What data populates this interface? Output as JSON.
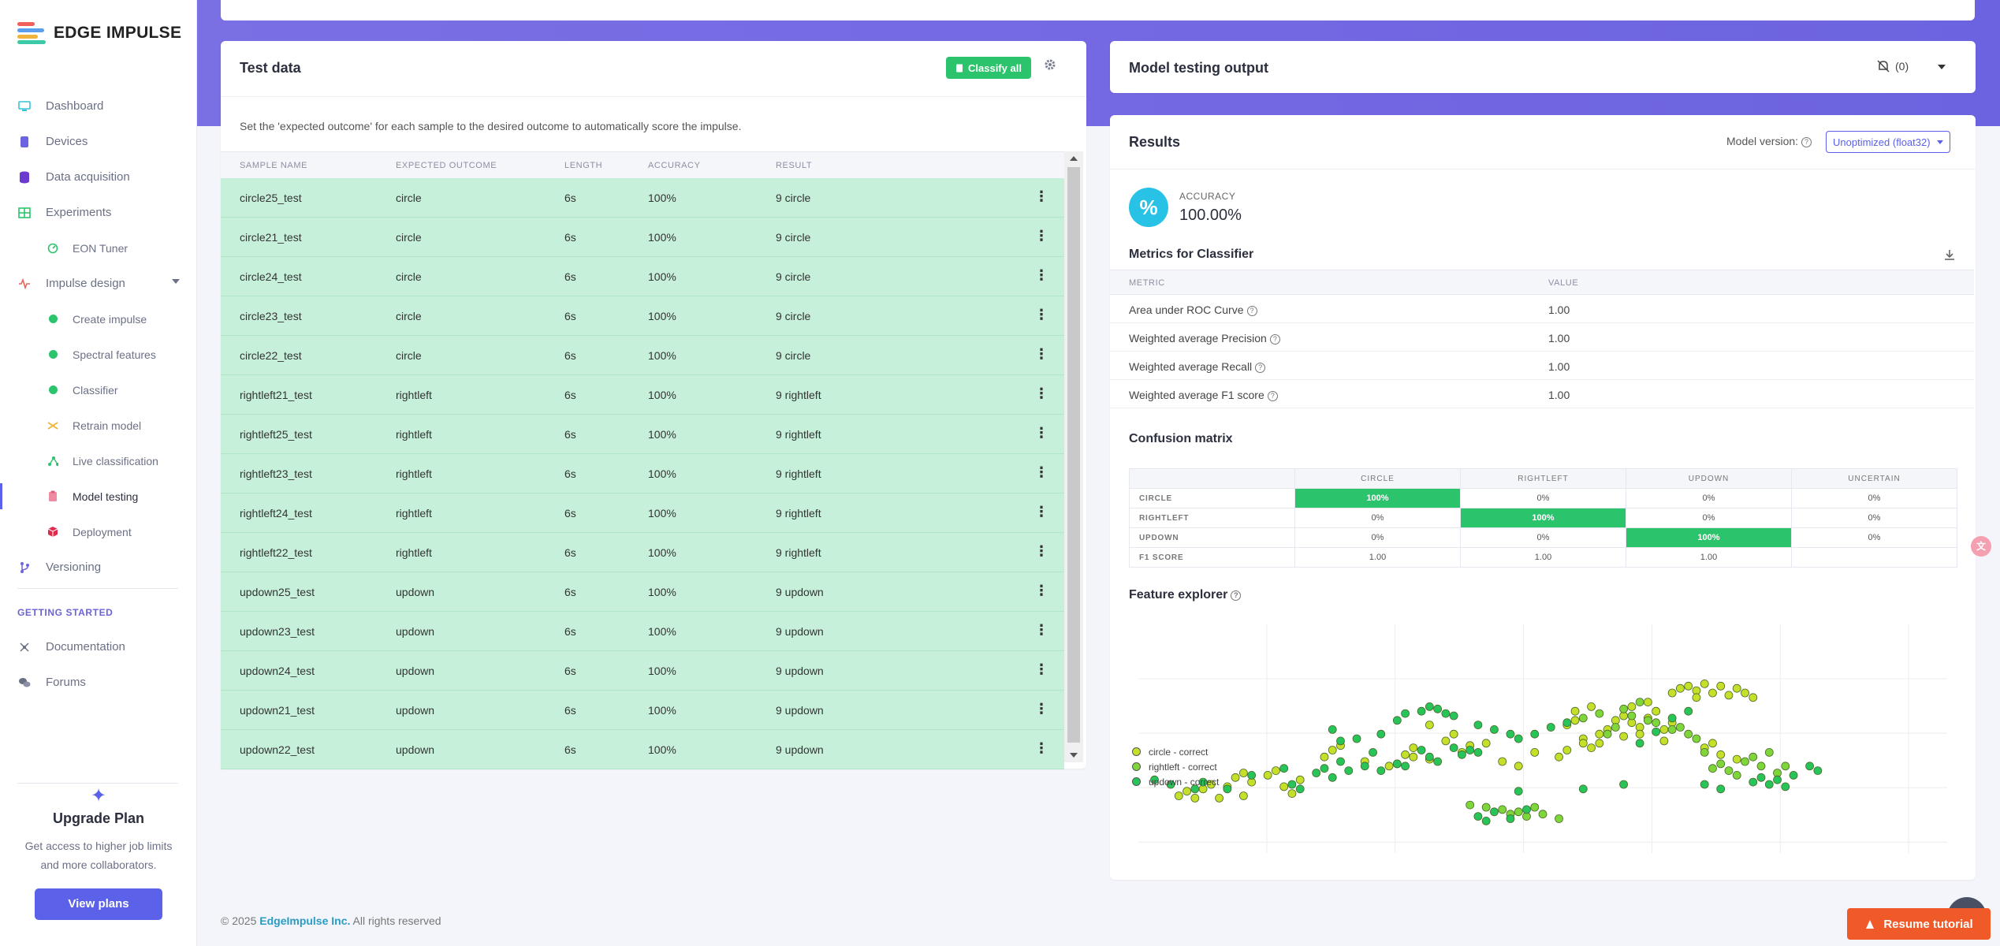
{
  "app": {
    "brand": "EDGE IMPULSE"
  },
  "sidebar": {
    "items": [
      {
        "label": "Dashboard"
      },
      {
        "label": "Devices"
      },
      {
        "label": "Data acquisition"
      },
      {
        "label": "Experiments"
      },
      {
        "label": "EON Tuner"
      },
      {
        "label": "Impulse design"
      },
      {
        "label": "Create impulse"
      },
      {
        "label": "Spectral features"
      },
      {
        "label": "Classifier"
      },
      {
        "label": "Retrain model"
      },
      {
        "label": "Live classification"
      },
      {
        "label": "Model testing"
      },
      {
        "label": "Deployment"
      },
      {
        "label": "Versioning"
      }
    ],
    "getting_started_label": "GETTING STARTED",
    "getting_started": [
      {
        "label": "Documentation"
      },
      {
        "label": "Forums"
      }
    ],
    "upgrade": {
      "title": "Upgrade Plan",
      "text": "Get access to higher job limits and more collaborators.",
      "button": "View plans"
    }
  },
  "test_data": {
    "title": "Test data",
    "classify_all": "Classify all",
    "hint": "Set the 'expected outcome' for each sample to the desired outcome to automatically score the impulse.",
    "columns": [
      "SAMPLE NAME",
      "EXPECTED OUTCOME",
      "LENGTH",
      "ACCURACY",
      "RESULT"
    ],
    "rows": [
      {
        "name": "circle25_test",
        "expected": "circle",
        "length": "6s",
        "accuracy": "100%",
        "result": "9 circle"
      },
      {
        "name": "circle21_test",
        "expected": "circle",
        "length": "6s",
        "accuracy": "100%",
        "result": "9 circle"
      },
      {
        "name": "circle24_test",
        "expected": "circle",
        "length": "6s",
        "accuracy": "100%",
        "result": "9 circle"
      },
      {
        "name": "circle23_test",
        "expected": "circle",
        "length": "6s",
        "accuracy": "100%",
        "result": "9 circle"
      },
      {
        "name": "circle22_test",
        "expected": "circle",
        "length": "6s",
        "accuracy": "100%",
        "result": "9 circle"
      },
      {
        "name": "rightleft21_test",
        "expected": "rightleft",
        "length": "6s",
        "accuracy": "100%",
        "result": "9 rightleft"
      },
      {
        "name": "rightleft25_test",
        "expected": "rightleft",
        "length": "6s",
        "accuracy": "100%",
        "result": "9 rightleft"
      },
      {
        "name": "rightleft23_test",
        "expected": "rightleft",
        "length": "6s",
        "accuracy": "100%",
        "result": "9 rightleft"
      },
      {
        "name": "rightleft24_test",
        "expected": "rightleft",
        "length": "6s",
        "accuracy": "100%",
        "result": "9 rightleft"
      },
      {
        "name": "rightleft22_test",
        "expected": "rightleft",
        "length": "6s",
        "accuracy": "100%",
        "result": "9 rightleft"
      },
      {
        "name": "updown25_test",
        "expected": "updown",
        "length": "6s",
        "accuracy": "100%",
        "result": "9 updown"
      },
      {
        "name": "updown23_test",
        "expected": "updown",
        "length": "6s",
        "accuracy": "100%",
        "result": "9 updown"
      },
      {
        "name": "updown24_test",
        "expected": "updown",
        "length": "6s",
        "accuracy": "100%",
        "result": "9 updown"
      },
      {
        "name": "updown21_test",
        "expected": "updown",
        "length": "6s",
        "accuracy": "100%",
        "result": "9 updown"
      },
      {
        "name": "updown22_test",
        "expected": "updown",
        "length": "6s",
        "accuracy": "100%",
        "result": "9 updown"
      }
    ]
  },
  "output": {
    "title": "Model testing output",
    "count": "(0)"
  },
  "results": {
    "title": "Results",
    "model_version_label": "Model version:",
    "model_version": "Unoptimized (float32)",
    "accuracy_label": "ACCURACY",
    "accuracy_value": "100.00%",
    "metrics_title": "Metrics for Classifier",
    "metric_columns": [
      "METRIC",
      "VALUE"
    ],
    "metrics": [
      {
        "name": "Area under ROC Curve",
        "value": "1.00"
      },
      {
        "name": "Weighted average Precision",
        "value": "1.00"
      },
      {
        "name": "Weighted average Recall",
        "value": "1.00"
      },
      {
        "name": "Weighted average F1 score",
        "value": "1.00"
      }
    ],
    "confusion_title": "Confusion matrix",
    "confusion": {
      "columns": [
        "CIRCLE",
        "RIGHTLEFT",
        "UPDOWN",
        "UNCERTAIN"
      ],
      "rows": [
        {
          "label": "CIRCLE",
          "cells": [
            "100%",
            "0%",
            "0%",
            "0%"
          ]
        },
        {
          "label": "RIGHTLEFT",
          "cells": [
            "0%",
            "100%",
            "0%",
            "0%"
          ]
        },
        {
          "label": "UPDOWN",
          "cells": [
            "0%",
            "0%",
            "100%",
            "0%"
          ]
        },
        {
          "label": "F1 SCORE",
          "cells": [
            "1.00",
            "1.00",
            "1.00",
            ""
          ]
        }
      ]
    },
    "feature_title": "Feature explorer",
    "legend": [
      {
        "label": "circle - correct",
        "color": "#c6e02a"
      },
      {
        "label": "rightleft - correct",
        "color": "#7fd63a"
      },
      {
        "label": "updown - correct",
        "color": "#27c45a"
      }
    ]
  },
  "chart_data": {
    "type": "scatter",
    "title": "Feature explorer",
    "xlabel": "",
    "ylabel": "",
    "xlim": [
      0,
      100
    ],
    "ylim": [
      0,
      100
    ],
    "series": [
      {
        "name": "circle - correct",
        "points": [
          [
            5,
            25
          ],
          [
            6,
            27
          ],
          [
            7,
            24
          ],
          [
            8,
            28
          ],
          [
            9,
            30
          ],
          [
            11,
            29
          ],
          [
            12,
            33
          ],
          [
            13,
            35
          ],
          [
            14,
            31
          ],
          [
            16,
            34
          ],
          [
            17,
            36
          ],
          [
            18,
            29
          ],
          [
            19,
            26
          ],
          [
            20,
            32
          ],
          [
            13,
            25
          ],
          [
            10,
            24
          ],
          [
            23,
            42
          ],
          [
            24,
            45
          ],
          [
            25,
            47
          ],
          [
            28,
            40
          ],
          [
            31,
            38
          ],
          [
            32,
            39
          ],
          [
            33,
            43
          ],
          [
            34,
            46
          ],
          [
            36,
            41
          ],
          [
            38,
            49
          ],
          [
            39,
            52
          ],
          [
            40,
            44
          ],
          [
            41,
            47
          ],
          [
            43,
            48
          ],
          [
            34,
            42
          ],
          [
            36,
            56
          ],
          [
            45,
            40
          ],
          [
            47,
            38
          ],
          [
            49,
            44
          ],
          [
            52,
            42
          ],
          [
            53,
            45
          ],
          [
            55,
            50
          ],
          [
            56,
            46
          ],
          [
            57,
            48
          ],
          [
            59,
            58
          ],
          [
            60,
            60
          ],
          [
            61,
            57
          ],
          [
            62,
            55
          ],
          [
            63,
            59
          ],
          [
            64,
            62
          ],
          [
            54,
            62
          ],
          [
            56,
            64
          ],
          [
            61,
            64
          ],
          [
            63,
            66
          ],
          [
            66,
            70
          ],
          [
            67,
            72
          ],
          [
            68,
            73
          ],
          [
            69,
            71
          ],
          [
            70,
            74
          ],
          [
            71,
            70
          ],
          [
            72,
            73
          ],
          [
            73,
            69
          ],
          [
            74,
            72
          ],
          [
            75,
            70
          ],
          [
            76,
            68
          ],
          [
            69,
            68
          ],
          [
            58,
            54
          ],
          [
            60,
            51
          ],
          [
            62,
            52
          ],
          [
            65,
            49
          ],
          [
            70,
            46
          ],
          [
            72,
            43
          ],
          [
            74,
            41
          ],
          [
            71,
            48
          ],
          [
            65,
            54
          ],
          [
            66,
            57
          ],
          [
            57,
            52
          ],
          [
            54,
            58
          ],
          [
            55,
            48
          ],
          [
            53,
            56
          ]
        ]
      },
      {
        "name": "rightleft - correct",
        "points": [
          [
            60,
            63
          ],
          [
            61,
            60
          ],
          [
            58,
            52
          ],
          [
            59,
            55
          ],
          [
            64,
            57
          ],
          [
            66,
            54
          ],
          [
            67,
            55
          ],
          [
            55,
            59
          ],
          [
            57,
            61
          ],
          [
            62,
            66
          ],
          [
            63,
            58
          ],
          [
            68,
            52
          ],
          [
            69,
            50
          ],
          [
            70,
            44
          ],
          [
            72,
            39
          ],
          [
            73,
            36
          ],
          [
            74,
            34
          ],
          [
            71,
            37
          ],
          [
            75,
            40
          ],
          [
            76,
            42
          ],
          [
            77,
            38
          ],
          [
            78,
            44
          ],
          [
            79,
            35
          ],
          [
            80,
            38
          ],
          [
            41,
            21
          ],
          [
            43,
            20
          ],
          [
            45,
            19
          ],
          [
            46,
            17
          ],
          [
            47,
            18
          ],
          [
            49,
            20
          ],
          [
            50,
            17
          ],
          [
            52,
            15
          ],
          [
            48,
            16
          ]
        ]
      },
      {
        "name": "updown - correct",
        "points": [
          [
            2,
            32
          ],
          [
            4,
            30
          ],
          [
            7,
            28
          ],
          [
            8,
            31
          ],
          [
            11,
            28
          ],
          [
            14,
            34
          ],
          [
            18,
            37
          ],
          [
            19,
            30
          ],
          [
            20,
            28
          ],
          [
            22,
            35
          ],
          [
            23,
            37
          ],
          [
            24,
            33
          ],
          [
            25,
            40
          ],
          [
            26,
            36
          ],
          [
            28,
            38
          ],
          [
            30,
            36
          ],
          [
            32,
            39
          ],
          [
            33,
            38
          ],
          [
            35,
            45
          ],
          [
            36,
            42
          ],
          [
            37,
            40
          ],
          [
            39,
            46
          ],
          [
            40,
            43
          ],
          [
            41,
            45
          ],
          [
            42,
            44
          ],
          [
            29,
            44
          ],
          [
            24,
            54
          ],
          [
            25,
            49
          ],
          [
            27,
            50
          ],
          [
            30,
            52
          ],
          [
            32,
            58
          ],
          [
            33,
            61
          ],
          [
            35,
            62
          ],
          [
            36,
            64
          ],
          [
            37,
            63
          ],
          [
            38,
            61
          ],
          [
            39,
            60
          ],
          [
            42,
            56
          ],
          [
            44,
            54
          ],
          [
            46,
            52
          ],
          [
            47,
            50
          ],
          [
            49,
            52
          ],
          [
            51,
            55
          ],
          [
            53,
            57
          ],
          [
            47,
            27
          ],
          [
            43,
            14
          ],
          [
            44,
            18
          ],
          [
            46,
            15
          ],
          [
            48,
            19
          ],
          [
            42,
            16
          ],
          [
            62,
            48
          ],
          [
            64,
            53
          ],
          [
            66,
            59
          ],
          [
            68,
            62
          ],
          [
            55,
            28
          ],
          [
            60,
            30
          ],
          [
            70,
            30
          ],
          [
            72,
            28
          ],
          [
            76,
            31
          ],
          [
            77,
            33
          ],
          [
            78,
            30
          ],
          [
            79,
            32
          ],
          [
            80,
            29
          ],
          [
            81,
            34
          ],
          [
            83,
            38
          ],
          [
            84,
            36
          ]
        ]
      }
    ]
  },
  "footer": {
    "copyright": "© 2025",
    "company": "EdgeImpulse Inc.",
    "rights": "All rights reserved"
  },
  "tutorial": {
    "button": "Resume tutorial"
  }
}
